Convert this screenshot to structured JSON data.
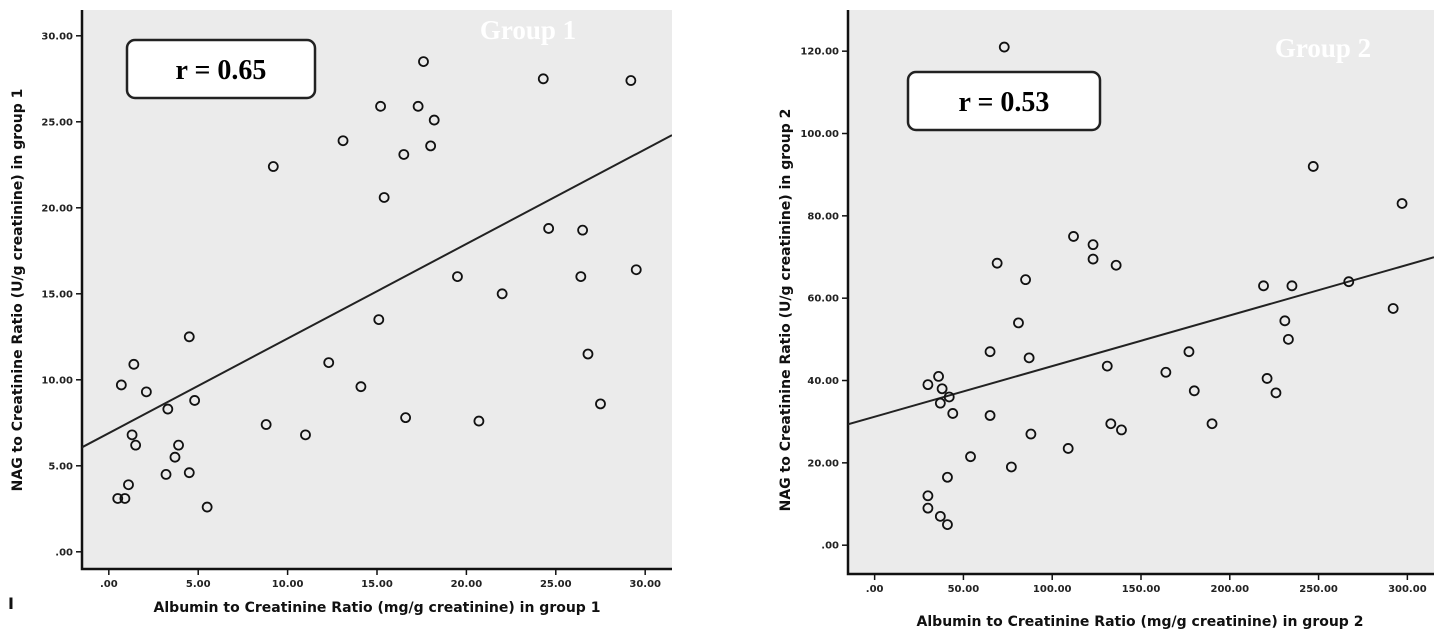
{
  "chart_data": [
    {
      "type": "scatter",
      "group_label": "Group 1",
      "annotation": "r = 0.65",
      "xlabel": "Albumin to Creatinine Ratio (mg/g creatinine) in group 1",
      "ylabel": "NAG to Creatinine Ratio (U/g creatinine) in group 1",
      "xlim": [
        -1.5,
        31.5
      ],
      "ylim": [
        -1,
        31.5
      ],
      "xticks": [
        ".00",
        "5.00",
        "10.00",
        "15.00",
        "20.00",
        "25.00",
        "30.00"
      ],
      "yticks": [
        ".00",
        "5.00",
        "10.00",
        "15.00",
        "20.00",
        "25.00",
        "30.00"
      ],
      "fit_line": {
        "intercept": 6.9,
        "slope": 0.55
      },
      "plot_bg": "#ebebeb",
      "points": [
        {
          "x": 0.5,
          "y": 3.1
        },
        {
          "x": 0.9,
          "y": 3.1
        },
        {
          "x": 1.1,
          "y": 3.9
        },
        {
          "x": 0.7,
          "y": 9.7
        },
        {
          "x": 1.3,
          "y": 6.8
        },
        {
          "x": 1.5,
          "y": 6.2
        },
        {
          "x": 1.4,
          "y": 10.9
        },
        {
          "x": 2.1,
          "y": 9.3
        },
        {
          "x": 3.2,
          "y": 4.5
        },
        {
          "x": 3.3,
          "y": 8.3
        },
        {
          "x": 3.7,
          "y": 5.5
        },
        {
          "x": 3.9,
          "y": 6.2
        },
        {
          "x": 4.5,
          "y": 4.6
        },
        {
          "x": 4.5,
          "y": 12.5
        },
        {
          "x": 4.8,
          "y": 8.8
        },
        {
          "x": 5.5,
          "y": 2.6
        },
        {
          "x": 8.8,
          "y": 7.4
        },
        {
          "x": 9.2,
          "y": 22.4
        },
        {
          "x": 11.0,
          "y": 6.8
        },
        {
          "x": 12.3,
          "y": 11.0
        },
        {
          "x": 13.1,
          "y": 23.9
        },
        {
          "x": 14.1,
          "y": 9.6
        },
        {
          "x": 15.1,
          "y": 13.5
        },
        {
          "x": 15.2,
          "y": 25.9
        },
        {
          "x": 15.4,
          "y": 20.6
        },
        {
          "x": 16.5,
          "y": 23.1
        },
        {
          "x": 16.6,
          "y": 7.8
        },
        {
          "x": 17.3,
          "y": 25.9
        },
        {
          "x": 17.6,
          "y": 28.5
        },
        {
          "x": 18.0,
          "y": 23.6
        },
        {
          "x": 18.2,
          "y": 25.1
        },
        {
          "x": 19.5,
          "y": 16.0
        },
        {
          "x": 20.7,
          "y": 7.6
        },
        {
          "x": 22.0,
          "y": 15.0
        },
        {
          "x": 24.3,
          "y": 27.5
        },
        {
          "x": 24.6,
          "y": 18.8
        },
        {
          "x": 26.4,
          "y": 16.0
        },
        {
          "x": 26.5,
          "y": 18.7
        },
        {
          "x": 26.8,
          "y": 11.5
        },
        {
          "x": 27.5,
          "y": 8.6
        },
        {
          "x": 29.2,
          "y": 27.4
        },
        {
          "x": 29.5,
          "y": 16.4
        }
      ]
    },
    {
      "type": "scatter",
      "group_label": "Group 2",
      "annotation": "r = 0.53",
      "xlabel": "Albumin to Creatinine Ratio (mg/g creatinine) in group 2",
      "ylabel": "NAG to Creatinine Ratio (U/g creatinine) in group 2",
      "xlim": [
        -15,
        315
      ],
      "ylim": [
        -7,
        130
      ],
      "xticks": [
        ".00",
        "50.00",
        "100.00",
        "150.00",
        "200.00",
        "250.00",
        "300.00"
      ],
      "yticks": [
        ".00",
        "20.00",
        "40.00",
        "60.00",
        "80.00",
        "100.00",
        "120.00"
      ],
      "fit_line": {
        "intercept": 31.2,
        "slope": 0.123
      },
      "plot_bg": "#ebebeb",
      "points": [
        {
          "x": 30,
          "y": 12.0
        },
        {
          "x": 30,
          "y": 9.0
        },
        {
          "x": 30,
          "y": 39.0
        },
        {
          "x": 36,
          "y": 41.0
        },
        {
          "x": 37,
          "y": 34.5
        },
        {
          "x": 38,
          "y": 38.0
        },
        {
          "x": 37,
          "y": 7.0
        },
        {
          "x": 41,
          "y": 5.0
        },
        {
          "x": 42,
          "y": 36.0
        },
        {
          "x": 41,
          "y": 16.5
        },
        {
          "x": 44,
          "y": 32.0
        },
        {
          "x": 54,
          "y": 21.5
        },
        {
          "x": 65,
          "y": 31.5
        },
        {
          "x": 65,
          "y": 47.0
        },
        {
          "x": 69,
          "y": 68.5
        },
        {
          "x": 73,
          "y": 121.0
        },
        {
          "x": 77,
          "y": 19.0
        },
        {
          "x": 81,
          "y": 54.0
        },
        {
          "x": 85,
          "y": 64.5
        },
        {
          "x": 87,
          "y": 45.5
        },
        {
          "x": 88,
          "y": 27.0
        },
        {
          "x": 109,
          "y": 23.5
        },
        {
          "x": 112,
          "y": 75.0
        },
        {
          "x": 123,
          "y": 73.0
        },
        {
          "x": 123,
          "y": 69.5
        },
        {
          "x": 131,
          "y": 43.5
        },
        {
          "x": 133,
          "y": 29.5
        },
        {
          "x": 136,
          "y": 68.0
        },
        {
          "x": 139,
          "y": 28.0
        },
        {
          "x": 164,
          "y": 42.0
        },
        {
          "x": 177,
          "y": 47.0
        },
        {
          "x": 180,
          "y": 37.5
        },
        {
          "x": 190,
          "y": 29.5
        },
        {
          "x": 219,
          "y": 63.0
        },
        {
          "x": 221,
          "y": 40.5
        },
        {
          "x": 226,
          "y": 37.0
        },
        {
          "x": 231,
          "y": 54.5
        },
        {
          "x": 233,
          "y": 50.0
        },
        {
          "x": 235,
          "y": 63.0
        },
        {
          "x": 247,
          "y": 92.0
        },
        {
          "x": 267,
          "y": 64.0
        },
        {
          "x": 292,
          "y": 57.5
        },
        {
          "x": 297,
          "y": 83.0
        }
      ]
    }
  ],
  "footer_mark": "I"
}
